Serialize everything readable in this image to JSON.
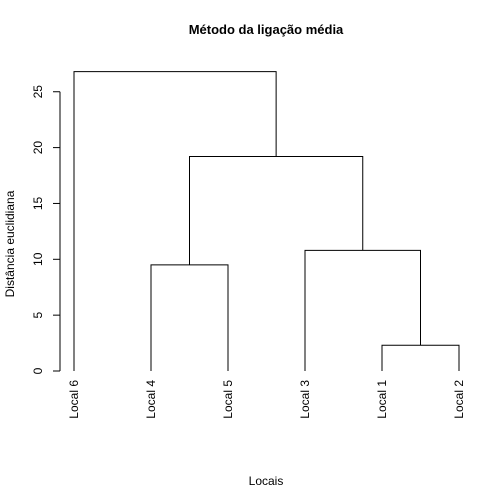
{
  "chart_data": {
    "type": "dendrogram",
    "title": "Método da ligação média",
    "xlabel": "Locais",
    "ylabel": "Distância euclidiana",
    "ylim": [
      0,
      27
    ],
    "yticks": [
      0,
      5,
      10,
      15,
      20,
      25
    ],
    "leaves": [
      "Local 6",
      "Local 4",
      "Local 5",
      "Local 3",
      "Local 1",
      "Local 2"
    ],
    "merges": [
      {
        "left": "Local 1",
        "right": "Local 2",
        "height": 2.3
      },
      {
        "left": "Local 3",
        "right": "Local 1+2",
        "height": 10.8
      },
      {
        "left": "Local 4",
        "right": "Local 5",
        "height": 9.5
      },
      {
        "left": "Local 4+5",
        "right": "Local 3+1+2",
        "height": 19.2
      },
      {
        "left": "Local 6",
        "right": "Local 4+5+3+1+2",
        "height": 26.8
      }
    ],
    "grid": false
  }
}
